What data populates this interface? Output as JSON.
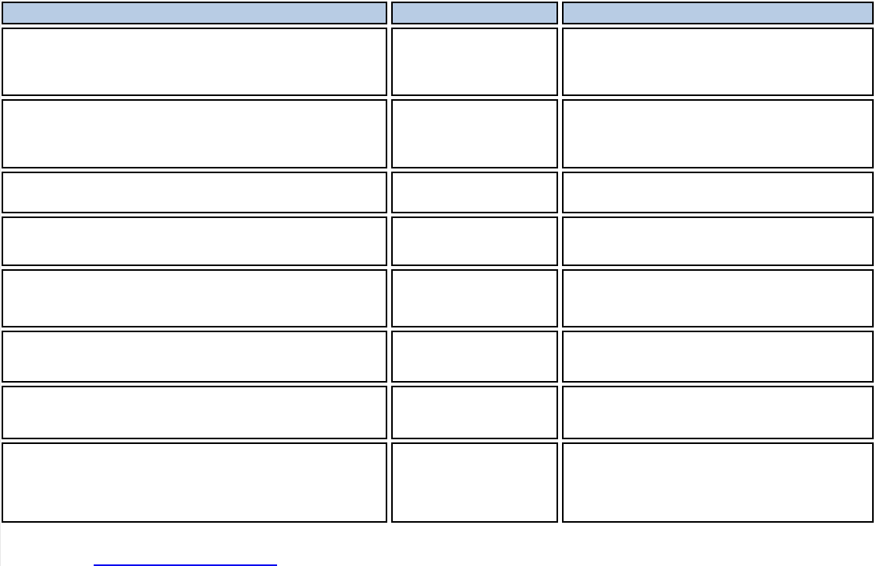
{
  "page": {
    "background_color": "#FFFFFF"
  },
  "table": {
    "description": "empty three-column table with shaded header row and black cell borders",
    "border_color": "#000000",
    "header": {
      "fill_color": "#B8CCE4",
      "cells": [
        "",
        "",
        ""
      ]
    },
    "rows": [
      [
        "",
        "",
        ""
      ],
      [
        "",
        "",
        ""
      ],
      [
        "",
        "",
        ""
      ],
      [
        "",
        "",
        ""
      ],
      [
        "",
        "",
        ""
      ],
      [
        "",
        "",
        ""
      ],
      [
        "",
        "",
        ""
      ],
      [
        "",
        "",
        ""
      ]
    ]
  },
  "footer_link": {
    "text": "",
    "underline_color": "#0000EE"
  }
}
